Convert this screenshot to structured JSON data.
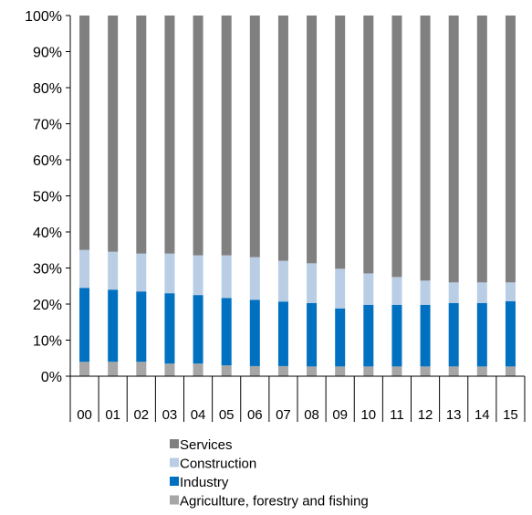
{
  "chart_data": {
    "type": "bar",
    "stacked": true,
    "percent": true,
    "title": "",
    "xlabel": "",
    "ylabel": "",
    "ylim": [
      0,
      100
    ],
    "y_ticks": [
      "0%",
      "10%",
      "20%",
      "30%",
      "40%",
      "50%",
      "60%",
      "70%",
      "80%",
      "90%",
      "100%"
    ],
    "grid": false,
    "legend_position": "bottom",
    "categories": [
      "00",
      "01",
      "02",
      "03",
      "04",
      "05",
      "06",
      "07",
      "08",
      "09",
      "10",
      "11",
      "12",
      "13",
      "14",
      "15"
    ],
    "series": [
      {
        "name": "Agriculture, forestry and fishing",
        "color": "#a6a6a6",
        "values": [
          4.0,
          4.0,
          4.0,
          3.5,
          3.5,
          3.0,
          2.8,
          2.8,
          2.7,
          2.7,
          2.7,
          2.7,
          2.7,
          2.7,
          2.7,
          2.7
        ]
      },
      {
        "name": "Industry",
        "color": "#0070c0",
        "values": [
          20.5,
          20.0,
          19.5,
          19.5,
          19.0,
          18.7,
          18.4,
          17.9,
          17.6,
          16.1,
          17.1,
          17.1,
          17.1,
          17.6,
          17.6,
          18.1
        ]
      },
      {
        "name": "Construction",
        "color": "#b9cde5",
        "values": [
          10.5,
          10.5,
          10.5,
          11.0,
          11.0,
          11.8,
          11.8,
          11.3,
          11.0,
          11.0,
          8.7,
          7.7,
          6.7,
          5.7,
          5.7,
          5.2
        ]
      },
      {
        "name": "Services",
        "color": "#808080",
        "values": [
          65.0,
          65.5,
          66.0,
          66.0,
          66.5,
          66.5,
          67.0,
          68.0,
          68.7,
          70.2,
          71.5,
          72.5,
          73.5,
          74.0,
          74.0,
          74.0
        ]
      }
    ],
    "legend_order": [
      "Services",
      "Construction",
      "Industry",
      "Agriculture, forestry and fishing"
    ]
  }
}
